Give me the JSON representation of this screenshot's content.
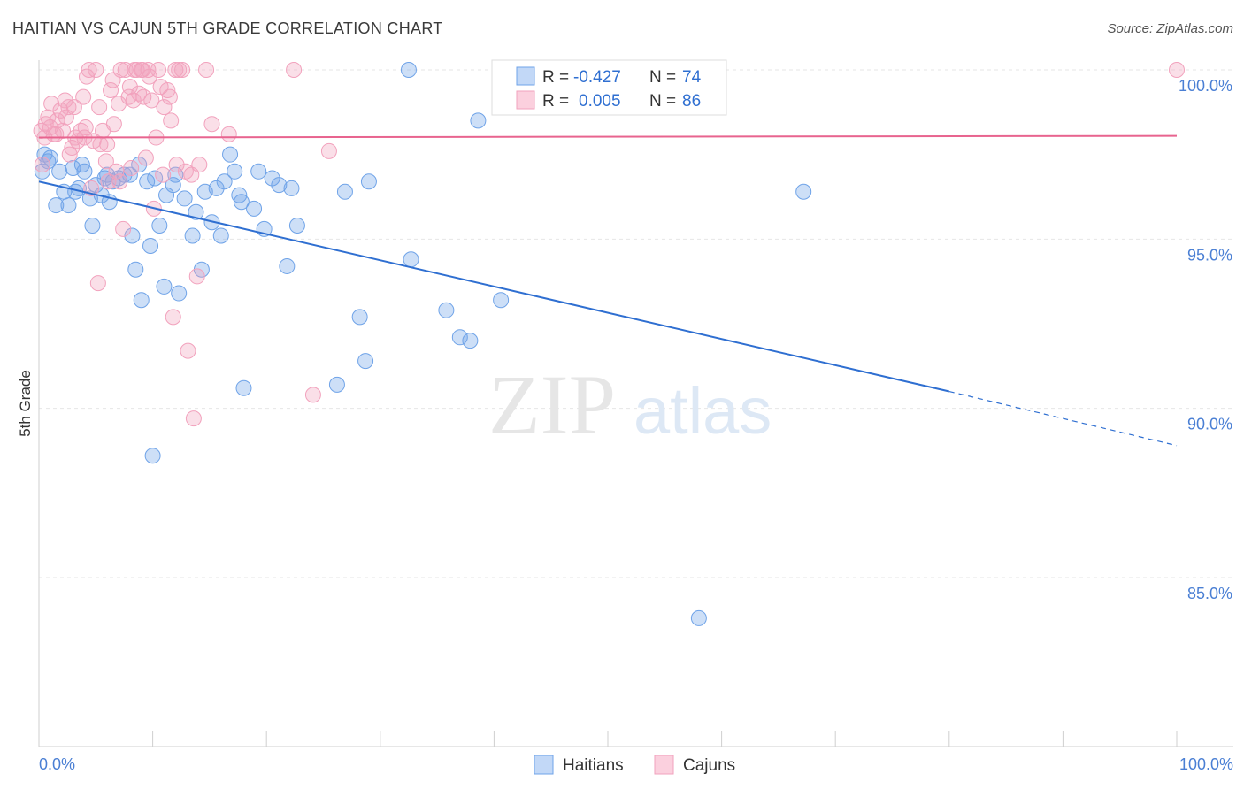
{
  "title": "HAITIAN VS CAJUN 5TH GRADE CORRELATION CHART",
  "source": "Source: ZipAtlas.com",
  "chart_data": {
    "type": "scatter",
    "title": "HAITIAN VS CAJUN 5TH GRADE CORRELATION CHART",
    "xlabel": "",
    "ylabel": "5th Grade",
    "xlim": [
      0,
      100
    ],
    "ylim": [
      80.5,
      100.8
    ],
    "x_tick_labels": [
      "0.0%",
      "100.0%"
    ],
    "y_ticks": [
      85,
      90,
      95,
      100
    ],
    "y_tick_labels": [
      "85.0%",
      "90.0%",
      "95.0%",
      "100.0%"
    ],
    "legend": {
      "r_label": "R =",
      "n_label": "N =",
      "entries": [
        {
          "name": "Haitians",
          "r": "-0.427",
          "n": "74",
          "color": "#6fa3e8",
          "line_color": "#2f6fd1"
        },
        {
          "name": "Cajuns",
          "r": "0.005",
          "n": "86",
          "color": "#f2a2bd",
          "line_color": "#e8648f"
        }
      ]
    },
    "watermark": {
      "zip": "ZIP",
      "atlas": "atlas"
    },
    "series": [
      {
        "name": "Haitians",
        "trend": {
          "x0": 0,
          "y0": 96.7,
          "x1": 80,
          "y1": 90.5,
          "dash_to_x": 100,
          "dash_to_y": 88.9
        },
        "points": [
          [
            0.3,
            97.0
          ],
          [
            0.5,
            97.5
          ],
          [
            1.0,
            97.4
          ],
          [
            1.5,
            96.0
          ],
          [
            1.8,
            97.0
          ],
          [
            2.2,
            96.4
          ],
          [
            2.6,
            96.0
          ],
          [
            3.0,
            97.1
          ],
          [
            3.5,
            96.5
          ],
          [
            3.8,
            97.2
          ],
          [
            4.0,
            97.0
          ],
          [
            4.5,
            96.2
          ],
          [
            4.7,
            95.4
          ],
          [
            5.0,
            96.6
          ],
          [
            5.5,
            96.3
          ],
          [
            6.0,
            96.9
          ],
          [
            6.2,
            96.1
          ],
          [
            6.5,
            96.7
          ],
          [
            7.0,
            96.8
          ],
          [
            7.5,
            96.9
          ],
          [
            8.0,
            96.9
          ],
          [
            8.2,
            95.1
          ],
          [
            8.5,
            94.1
          ],
          [
            8.8,
            97.2
          ],
          [
            9.0,
            93.2
          ],
          [
            9.5,
            96.7
          ],
          [
            9.8,
            94.8
          ],
          [
            10.2,
            96.8
          ],
          [
            10.6,
            95.4
          ],
          [
            11.0,
            93.6
          ],
          [
            11.2,
            96.3
          ],
          [
            11.8,
            96.6
          ],
          [
            12.0,
            96.9
          ],
          [
            12.3,
            93.4
          ],
          [
            12.8,
            96.2
          ],
          [
            13.5,
            95.1
          ],
          [
            13.8,
            95.8
          ],
          [
            14.3,
            94.1
          ],
          [
            14.6,
            96.4
          ],
          [
            15.2,
            95.5
          ],
          [
            15.6,
            96.5
          ],
          [
            16.0,
            95.1
          ],
          [
            16.3,
            96.7
          ],
          [
            16.8,
            97.5
          ],
          [
            17.2,
            97.0
          ],
          [
            17.6,
            96.3
          ],
          [
            17.8,
            96.1
          ],
          [
            18.0,
            90.6
          ],
          [
            18.9,
            95.9
          ],
          [
            19.3,
            97.0
          ],
          [
            19.8,
            95.3
          ],
          [
            20.5,
            96.8
          ],
          [
            21.1,
            96.6
          ],
          [
            21.8,
            94.2
          ],
          [
            22.2,
            96.5
          ],
          [
            22.7,
            95.4
          ],
          [
            26.2,
            90.7
          ],
          [
            26.9,
            96.4
          ],
          [
            28.2,
            92.7
          ],
          [
            28.7,
            91.4
          ],
          [
            29.0,
            96.7
          ],
          [
            32.5,
            100.0
          ],
          [
            32.7,
            94.4
          ],
          [
            35.8,
            92.9
          ],
          [
            37.0,
            92.1
          ],
          [
            37.9,
            92.0
          ],
          [
            38.6,
            98.5
          ],
          [
            40.6,
            93.2
          ],
          [
            10.0,
            88.6
          ],
          [
            58.0,
            83.8
          ],
          [
            67.2,
            96.4
          ],
          [
            0.8,
            97.3
          ],
          [
            3.2,
            96.4
          ],
          [
            5.8,
            96.8
          ]
        ]
      },
      {
        "name": "Cajuns",
        "trend": {
          "x0": 0,
          "y0": 98.0,
          "x1": 100,
          "y1": 98.05
        },
        "points": [
          [
            0.2,
            98.2
          ],
          [
            0.5,
            98.0
          ],
          [
            0.8,
            98.6
          ],
          [
            1.0,
            98.3
          ],
          [
            1.3,
            98.1
          ],
          [
            1.6,
            98.5
          ],
          [
            1.9,
            98.8
          ],
          [
            2.1,
            98.2
          ],
          [
            2.4,
            98.6
          ],
          [
            2.6,
            98.9
          ],
          [
            2.9,
            97.7
          ],
          [
            3.2,
            98.0
          ],
          [
            3.4,
            97.9
          ],
          [
            3.7,
            98.2
          ],
          [
            4.0,
            98.0
          ],
          [
            4.2,
            99.8
          ],
          [
            4.4,
            100.0
          ],
          [
            4.6,
            96.5
          ],
          [
            4.8,
            97.9
          ],
          [
            5.0,
            100.0
          ],
          [
            5.2,
            93.7
          ],
          [
            5.4,
            97.8
          ],
          [
            5.6,
            98.2
          ],
          [
            5.9,
            97.3
          ],
          [
            6.1,
            96.7
          ],
          [
            6.3,
            99.4
          ],
          [
            6.5,
            99.7
          ],
          [
            6.8,
            97.0
          ],
          [
            7.1,
            96.7
          ],
          [
            7.4,
            95.3
          ],
          [
            7.6,
            100.0
          ],
          [
            7.9,
            99.2
          ],
          [
            8.1,
            97.1
          ],
          [
            8.3,
            99.1
          ],
          [
            8.6,
            100.0
          ],
          [
            8.8,
            99.3
          ],
          [
            9.0,
            100.0
          ],
          [
            9.2,
            99.2
          ],
          [
            9.4,
            97.4
          ],
          [
            9.6,
            100.0
          ],
          [
            9.9,
            99.1
          ],
          [
            10.1,
            95.9
          ],
          [
            10.3,
            98.0
          ],
          [
            10.5,
            100.0
          ],
          [
            10.7,
            99.5
          ],
          [
            11.0,
            98.9
          ],
          [
            11.3,
            99.4
          ],
          [
            11.6,
            98.5
          ],
          [
            11.8,
            92.7
          ],
          [
            12.1,
            97.2
          ],
          [
            12.3,
            100.0
          ],
          [
            12.6,
            100.0
          ],
          [
            12.9,
            97.0
          ],
          [
            13.1,
            91.7
          ],
          [
            13.4,
            96.9
          ],
          [
            13.6,
            89.7
          ],
          [
            13.9,
            93.9
          ],
          [
            14.1,
            97.2
          ],
          [
            14.7,
            100.0
          ],
          [
            15.2,
            98.4
          ],
          [
            16.7,
            98.1
          ],
          [
            22.4,
            100.0
          ],
          [
            24.1,
            90.4
          ],
          [
            25.5,
            97.6
          ],
          [
            100.0,
            100.0
          ],
          [
            0.3,
            97.2
          ],
          [
            1.1,
            99.0
          ],
          [
            2.7,
            97.5
          ],
          [
            3.9,
            99.2
          ],
          [
            6.6,
            98.4
          ],
          [
            7.2,
            100.0
          ],
          [
            8.4,
            100.0
          ],
          [
            9.1,
            100.0
          ],
          [
            12.0,
            100.0
          ],
          [
            0.6,
            98.4
          ],
          [
            1.5,
            98.1
          ],
          [
            2.3,
            99.1
          ],
          [
            3.1,
            98.9
          ],
          [
            4.1,
            98.3
          ],
          [
            5.3,
            98.9
          ],
          [
            6.0,
            97.8
          ],
          [
            7.0,
            99.0
          ],
          [
            8.0,
            99.5
          ],
          [
            9.7,
            99.8
          ],
          [
            10.9,
            96.9
          ],
          [
            11.5,
            99.2
          ]
        ]
      }
    ]
  }
}
